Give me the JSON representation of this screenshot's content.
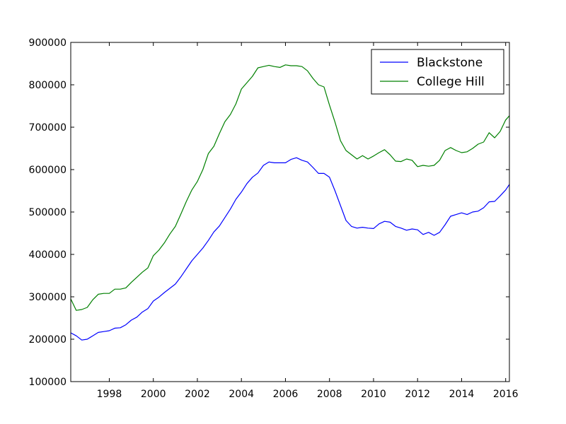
{
  "chart_data": {
    "type": "line",
    "title": "",
    "xlabel": "",
    "ylabel": "",
    "xlim": [
      1996.25,
      2016.17
    ],
    "ylim": [
      100000,
      900000
    ],
    "x_ticks": [
      1998,
      2000,
      2002,
      2004,
      2006,
      2008,
      2010,
      2012,
      2014,
      2016
    ],
    "x_tick_labels": [
      "1998",
      "2000",
      "2002",
      "2004",
      "2006",
      "2008",
      "2010",
      "2012",
      "2014",
      "2016"
    ],
    "y_ticks": [
      100000,
      200000,
      300000,
      400000,
      500000,
      600000,
      700000,
      800000,
      900000
    ],
    "y_tick_labels": [
      "100000",
      "200000",
      "300000",
      "400000",
      "500000",
      "600000",
      "700000",
      "800000",
      "900000"
    ],
    "grid": false,
    "legend_position": "top-right",
    "series": [
      {
        "name": "Blackstone",
        "color": "#0000ff",
        "x": [
          1996.25,
          1996.5,
          1996.75,
          1997.0,
          1997.25,
          1997.5,
          1997.75,
          1998.0,
          1998.25,
          1998.5,
          1998.75,
          1999.0,
          1999.25,
          1999.5,
          1999.75,
          2000.0,
          2000.25,
          2000.5,
          2000.75,
          2001.0,
          2001.25,
          2001.5,
          2001.75,
          2002.0,
          2002.25,
          2002.5,
          2002.75,
          2003.0,
          2003.25,
          2003.5,
          2003.75,
          2004.0,
          2004.25,
          2004.5,
          2004.75,
          2005.0,
          2005.25,
          2005.5,
          2005.75,
          2006.0,
          2006.25,
          2006.5,
          2006.75,
          2007.0,
          2007.25,
          2007.5,
          2007.75,
          2008.0,
          2008.25,
          2008.5,
          2008.75,
          2009.0,
          2009.25,
          2009.5,
          2009.75,
          2010.0,
          2010.25,
          2010.5,
          2010.75,
          2011.0,
          2011.25,
          2011.5,
          2011.75,
          2012.0,
          2012.25,
          2012.5,
          2012.75,
          2013.0,
          2013.25,
          2013.5,
          2013.75,
          2014.0,
          2014.25,
          2014.5,
          2014.75,
          2015.0,
          2015.25,
          2015.5,
          2015.75,
          2016.0,
          2016.17
        ],
        "values": [
          215000,
          208000,
          198000,
          200000,
          208000,
          216000,
          218000,
          220000,
          226000,
          227000,
          234000,
          245000,
          252000,
          264000,
          272000,
          290000,
          299000,
          310000,
          320000,
          330000,
          347000,
          366000,
          385000,
          400000,
          415000,
          433000,
          453000,
          467000,
          487000,
          507000,
          530000,
          547000,
          567000,
          582000,
          592000,
          610000,
          618000,
          616000,
          616000,
          616000,
          624000,
          628000,
          622000,
          618000,
          605000,
          591000,
          591000,
          582000,
          550000,
          515000,
          480000,
          466000,
          462000,
          464000,
          462000,
          461000,
          472000,
          478000,
          476000,
          466000,
          462000,
          457000,
          460000,
          458000,
          447000,
          452000,
          445000,
          452000,
          470000,
          490000,
          494000,
          498000,
          494000,
          500000,
          502000,
          510000,
          524000,
          525000,
          538000,
          552000,
          565000
        ]
      },
      {
        "name": "College Hill",
        "color": "#008000",
        "x": [
          1996.25,
          1996.5,
          1996.75,
          1997.0,
          1997.25,
          1997.5,
          1997.75,
          1998.0,
          1998.25,
          1998.5,
          1998.75,
          1999.0,
          1999.25,
          1999.5,
          1999.75,
          2000.0,
          2000.25,
          2000.5,
          2000.75,
          2001.0,
          2001.25,
          2001.5,
          2001.75,
          2002.0,
          2002.25,
          2002.5,
          2002.75,
          2003.0,
          2003.25,
          2003.5,
          2003.75,
          2004.0,
          2004.25,
          2004.5,
          2004.75,
          2005.0,
          2005.25,
          2005.5,
          2005.75,
          2006.0,
          2006.25,
          2006.5,
          2006.75,
          2007.0,
          2007.25,
          2007.5,
          2007.75,
          2008.0,
          2008.25,
          2008.5,
          2008.75,
          2009.0,
          2009.25,
          2009.5,
          2009.75,
          2010.0,
          2010.25,
          2010.5,
          2010.75,
          2011.0,
          2011.25,
          2011.5,
          2011.75,
          2012.0,
          2012.25,
          2012.5,
          2012.75,
          2013.0,
          2013.25,
          2013.5,
          2013.75,
          2014.0,
          2014.25,
          2014.5,
          2014.75,
          2015.0,
          2015.25,
          2015.5,
          2015.75,
          2016.0,
          2016.17
        ],
        "values": [
          295000,
          268000,
          270000,
          275000,
          293000,
          306000,
          308000,
          308000,
          318000,
          318000,
          321000,
          334000,
          346000,
          358000,
          368000,
          397000,
          410000,
          427000,
          448000,
          466000,
          495000,
          525000,
          552000,
          572000,
          600000,
          638000,
          655000,
          685000,
          713000,
          730000,
          755000,
          790000,
          805000,
          820000,
          840000,
          843000,
          846000,
          843000,
          841000,
          847000,
          845000,
          845000,
          843000,
          833000,
          815000,
          800000,
          795000,
          752000,
          712000,
          668000,
          645000,
          635000,
          625000,
          633000,
          625000,
          632000,
          640000,
          647000,
          635000,
          620000,
          619000,
          625000,
          622000,
          607000,
          610000,
          608000,
          610000,
          622000,
          645000,
          652000,
          645000,
          640000,
          642000,
          650000,
          660000,
          665000,
          687000,
          675000,
          690000,
          717000,
          727000
        ]
      }
    ]
  }
}
